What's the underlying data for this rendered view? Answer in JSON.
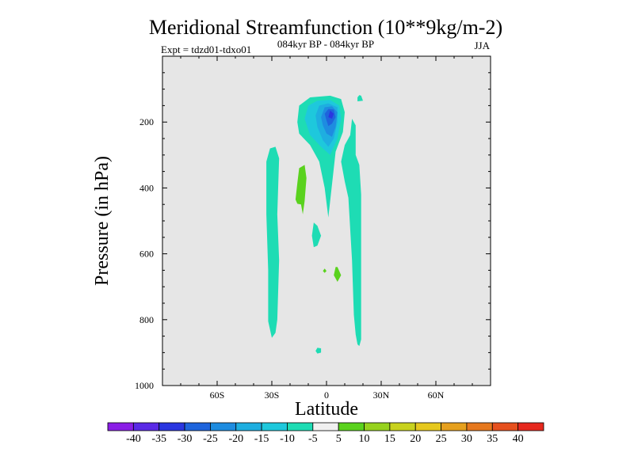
{
  "chart_data": {
    "type": "contour",
    "title": "Meridional Streamfunction (10**9kg/m-2)",
    "subtitle_center": "084kyr BP - 084kyr BP",
    "subtitle_left": "Expt = tdzd01-tdxo01",
    "subtitle_right": "JJA",
    "xlabel": "Latitude",
    "ylabel": "Pressure (in hPa)",
    "xlim": [
      -90,
      90
    ],
    "ylim": [
      1000,
      0
    ],
    "x_ticks": [
      {
        "value": -60,
        "label": "60S"
      },
      {
        "value": -30,
        "label": "30S"
      },
      {
        "value": 0,
        "label": "0"
      },
      {
        "value": 30,
        "label": "30N"
      },
      {
        "value": 60,
        "label": "60N"
      }
    ],
    "y_ticks": [
      {
        "value": 200,
        "label": "200"
      },
      {
        "value": 400,
        "label": "400"
      },
      {
        "value": 600,
        "label": "600"
      },
      {
        "value": 800,
        "label": "800"
      },
      {
        "value": 1000,
        "label": "1000"
      }
    ],
    "background_color": "#e6e6e6",
    "colorbar": {
      "labels": [
        "-40",
        "-35",
        "-30",
        "-25",
        "-20",
        "-15",
        "-10",
        "-5",
        "5",
        "10",
        "15",
        "20",
        "25",
        "30",
        "35",
        "40"
      ],
      "colors": [
        "#8a1ee6",
        "#5a2ae6",
        "#2a36e0",
        "#1e64dc",
        "#1e8ce0",
        "#1eaee0",
        "#1ec8dc",
        "#1edcb4",
        "#f0f0f0",
        "#5ad21e",
        "#96d21e",
        "#c8d21e",
        "#e6c81e",
        "#e6a01e",
        "#e6781e",
        "#e6501e",
        "#e6281e"
      ]
    },
    "regions": [
      {
        "level": -10,
        "color": "#1edcb4",
        "points": [
          [
            -16,
            200
          ],
          [
            -15,
            150
          ],
          [
            -9,
            125
          ],
          [
            2,
            120
          ],
          [
            8,
            130
          ],
          [
            10,
            170
          ],
          [
            9,
            230
          ],
          [
            5,
            290
          ],
          [
            3,
            390
          ],
          [
            1,
            490
          ],
          [
            -1,
            400
          ],
          [
            -4,
            320
          ],
          [
            -9,
            270
          ],
          [
            -15,
            235
          ]
        ]
      },
      {
        "level": -15,
        "color": "#1ec8dc",
        "points": [
          [
            -12,
            190
          ],
          [
            -10,
            150
          ],
          [
            -5,
            135
          ],
          [
            2,
            133
          ],
          [
            7,
            150
          ],
          [
            8,
            190
          ],
          [
            6,
            250
          ],
          [
            2,
            300
          ],
          [
            -3,
            275
          ],
          [
            -9,
            240
          ]
        ]
      },
      {
        "level": -20,
        "color": "#1eaee0",
        "points": [
          [
            -6,
            180
          ],
          [
            -4,
            150
          ],
          [
            1,
            143
          ],
          [
            6,
            155
          ],
          [
            6,
            200
          ],
          [
            4,
            250
          ],
          [
            1,
            275
          ],
          [
            -2,
            255
          ],
          [
            -5,
            215
          ]
        ]
      },
      {
        "level": -25,
        "color": "#1e8ce0",
        "points": [
          [
            -3,
            185
          ],
          [
            -1,
            155
          ],
          [
            3,
            152
          ],
          [
            6,
            170
          ],
          [
            5,
            215
          ],
          [
            3,
            245
          ],
          [
            0,
            235
          ],
          [
            -2,
            210
          ]
        ]
      },
      {
        "level": -30,
        "color": "#1e64dc",
        "points": [
          [
            -1,
            175
          ],
          [
            1,
            160
          ],
          [
            4,
            162
          ],
          [
            5,
            185
          ],
          [
            3,
            205
          ],
          [
            1,
            212
          ],
          [
            0,
            195
          ]
        ]
      },
      {
        "level": -35,
        "color": "#2a36e0",
        "points": [
          [
            1,
            185
          ],
          [
            2,
            165
          ],
          [
            4,
            175
          ],
          [
            3,
            190
          ]
        ]
      },
      {
        "level": -10,
        "color": "#1edcb4",
        "points": [
          [
            17,
            125
          ],
          [
            18,
            118
          ],
          [
            19,
            120
          ],
          [
            20,
            135
          ],
          [
            17,
            137
          ]
        ]
      },
      {
        "level": -10,
        "color": "#1edcb4",
        "points": [
          [
            -33,
            320
          ],
          [
            -31,
            280
          ],
          [
            -28,
            275
          ],
          [
            -26,
            310
          ],
          [
            -27,
            480
          ],
          [
            -26,
            620
          ],
          [
            -27,
            800
          ],
          [
            -28,
            840
          ],
          [
            -30,
            855
          ],
          [
            -32,
            805
          ],
          [
            -32,
            650
          ],
          [
            -33,
            480
          ]
        ]
      },
      {
        "level": -10,
        "color": "#1edcb4",
        "points": [
          [
            8,
            320
          ],
          [
            10,
            270
          ],
          [
            13,
            240
          ],
          [
            14,
            190
          ],
          [
            16,
            210
          ],
          [
            16,
            300
          ],
          [
            18,
            330
          ],
          [
            19,
            420
          ],
          [
            19,
            600
          ],
          [
            19,
            860
          ],
          [
            18,
            880
          ],
          [
            17,
            875
          ],
          [
            16,
            845
          ],
          [
            15,
            785
          ],
          [
            14,
            620
          ],
          [
            12,
            430
          ],
          [
            10,
            380
          ]
        ]
      },
      {
        "level": 5,
        "color": "#5ad21e",
        "points": [
          [
            -17,
            435
          ],
          [
            -16,
            385
          ],
          [
            -15,
            340
          ],
          [
            -12,
            330
          ],
          [
            -11,
            370
          ],
          [
            -12,
            440
          ],
          [
            -13,
            480
          ],
          [
            -14,
            450
          ],
          [
            -16,
            448
          ]
        ]
      },
      {
        "level": -10,
        "color": "#1edcb4",
        "points": [
          [
            -8,
            545
          ],
          [
            -7,
            505
          ],
          [
            -5,
            515
          ],
          [
            -3,
            545
          ],
          [
            -5,
            575
          ],
          [
            -7,
            580
          ]
        ]
      },
      {
        "level": 5,
        "color": "#5ad21e",
        "points": [
          [
            4,
            665
          ],
          [
            5,
            640
          ],
          [
            6,
            640
          ],
          [
            8,
            665
          ],
          [
            6,
            685
          ],
          [
            5,
            675
          ]
        ]
      },
      {
        "level": 5,
        "color": "#5ad21e",
        "points": [
          [
            -2,
            652
          ],
          [
            -1,
            645
          ],
          [
            0,
            652
          ],
          [
            -1,
            658
          ]
        ]
      },
      {
        "level": -10,
        "color": "#1edcb4",
        "points": [
          [
            -6,
            895
          ],
          [
            -5,
            885
          ],
          [
            -3,
            887
          ],
          [
            -3,
            900
          ],
          [
            -5,
            903
          ]
        ]
      }
    ]
  }
}
